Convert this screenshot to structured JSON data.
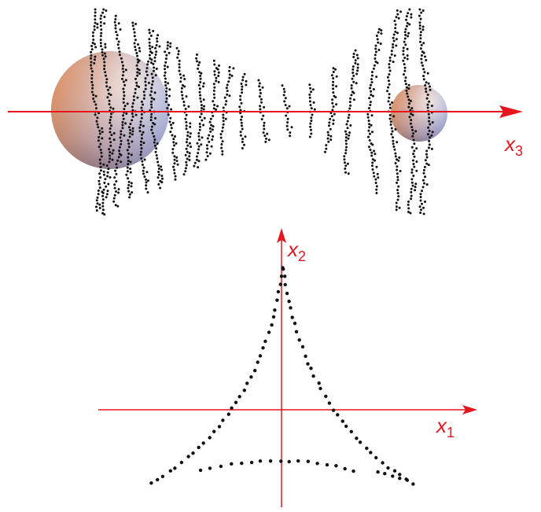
{
  "axes": [
    {
      "symbol": "x",
      "subscript": "3"
    },
    {
      "symbol": "x",
      "subscript": "2"
    },
    {
      "symbol": "x",
      "subscript": "1"
    }
  ]
}
